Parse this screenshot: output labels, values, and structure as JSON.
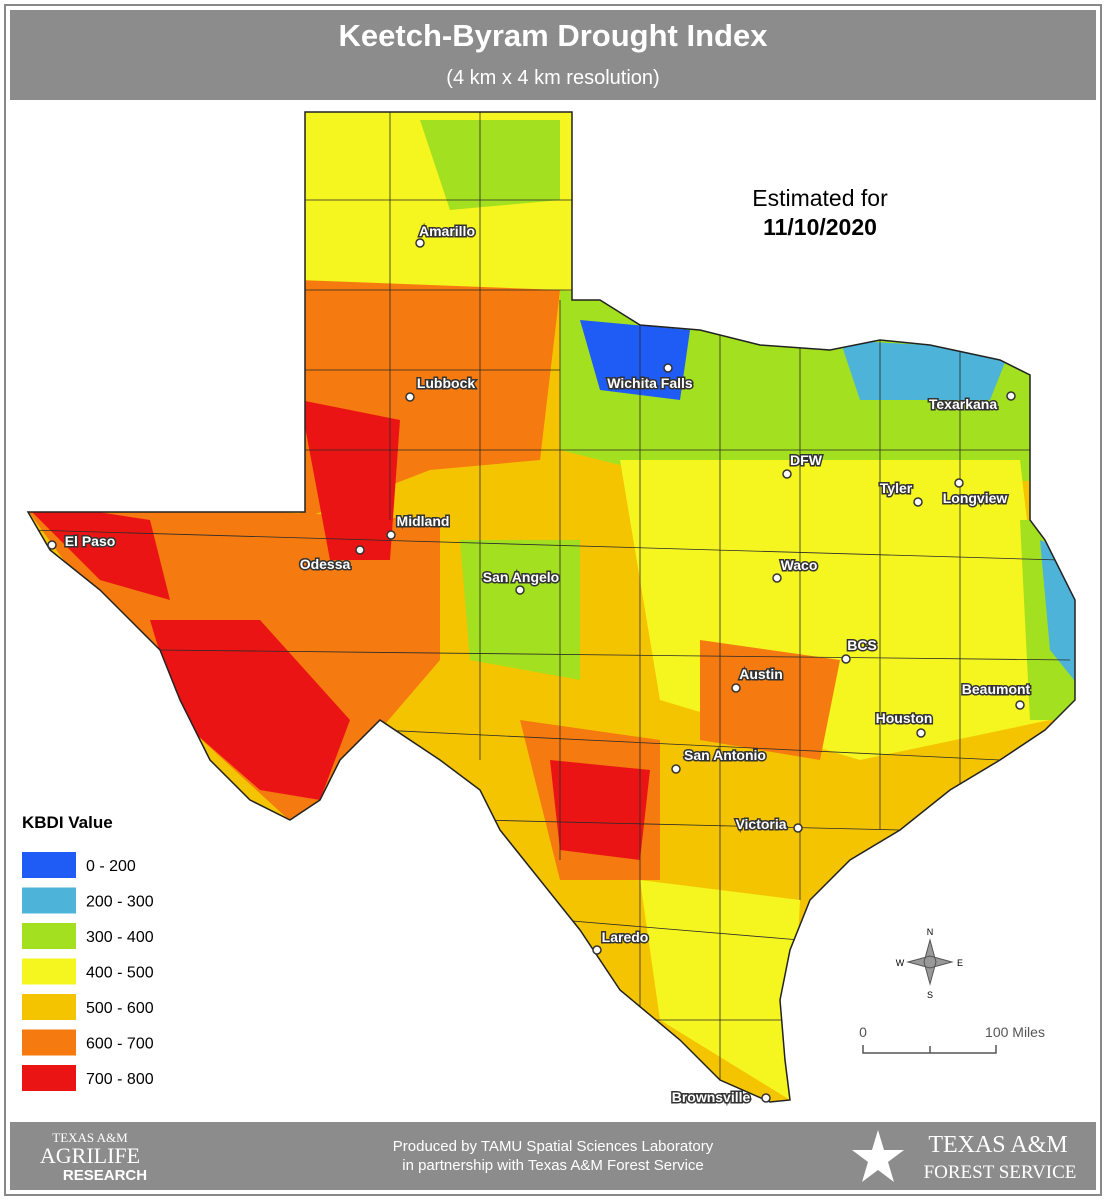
{
  "header": {
    "title": "Keetch-Byram Drought Index",
    "subtitle": "(4 km x 4 km resolution)"
  },
  "estimate": {
    "label": "Estimated for",
    "date": "11/10/2020"
  },
  "cities": [
    "Amarillo",
    "Lubbock",
    "Wichita Falls",
    "Texarkana",
    "DFW",
    "Tyler",
    "Longview",
    "Midland",
    "Odessa",
    "El Paso",
    "San Angelo",
    "Waco",
    "BCS",
    "Austin",
    "Beaumont",
    "Houston",
    "San Antonio",
    "Victoria",
    "Laredo",
    "Brownsville"
  ],
  "legend": {
    "title": "KBDI Value",
    "items": [
      {
        "label": "0 - 200",
        "color": "#1f5cf5"
      },
      {
        "label": "200 - 300",
        "color": "#4db3d9"
      },
      {
        "label": "300 - 400",
        "color": "#a3e01f"
      },
      {
        "label": "400 - 500",
        "color": "#f5f51f"
      },
      {
        "label": "500 - 600",
        "color": "#f5c400"
      },
      {
        "label": "600 - 700",
        "color": "#f57a0f"
      },
      {
        "label": "700 - 800",
        "color": "#eb1414"
      }
    ]
  },
  "scale": {
    "start": "0",
    "end": "100 Miles"
  },
  "compass": {
    "n": "N",
    "s": "S",
    "e": "E",
    "w": "W"
  },
  "footer": {
    "credit": [
      "Produced by TAMU Spatial Sciences Laboratory",
      "in partnership with Texas A&M Forest Service"
    ],
    "left_logo": [
      "TEXAS A&M",
      "AGRILIFE",
      "RESEARCH"
    ],
    "right_logo": [
      "TEXAS A&M",
      "FOREST SERVICE"
    ]
  }
}
